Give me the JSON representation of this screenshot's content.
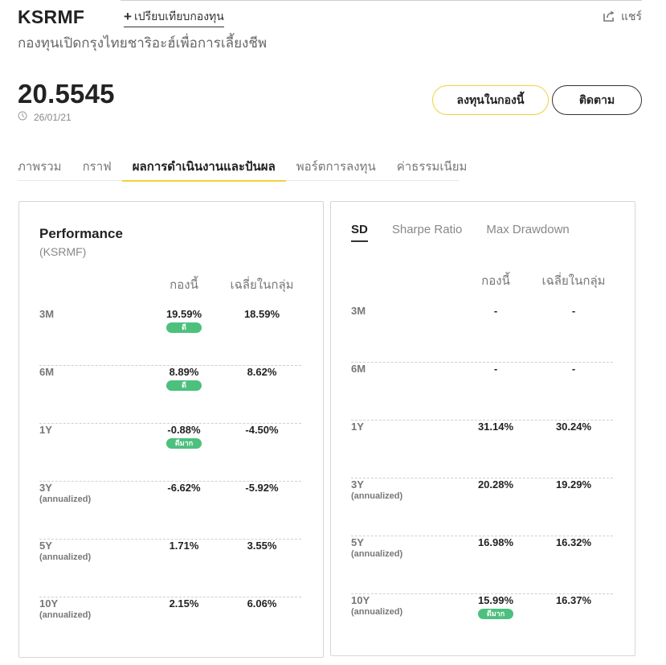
{
  "header": {
    "fund_code": "KSRMF",
    "compare_label": "เปรียบเทียบกองทุน",
    "share_label": "แชร์",
    "fund_name": "กองทุนเปิดกรุงไทยชาริอะฮ์เพื่อการเลี้ยงชีพ"
  },
  "nav": {
    "value": "20.5545",
    "date": "26/01/21"
  },
  "actions": {
    "invest_label": "ลงทุนในกองนี้",
    "follow_label": "ติดตาม"
  },
  "tabs": [
    {
      "label": "ภาพรวม"
    },
    {
      "label": "กราฟ"
    },
    {
      "label": "ผลการดำเนินงานและปันผล"
    },
    {
      "label": "พอร์ตการลงทุน"
    },
    {
      "label": "ค่าธรรมเนียม"
    }
  ],
  "performance": {
    "title": "Performance",
    "subtitle": "(KSRMF)",
    "col_fund": "กองนี้",
    "col_avg": "เฉลี่ยในกลุ่ม",
    "rows": [
      {
        "period": "3M",
        "sub": "",
        "fund": "19.59%",
        "avg": "18.59%",
        "badge": "ดี"
      },
      {
        "period": "6M",
        "sub": "",
        "fund": "8.89%",
        "avg": "8.62%",
        "badge": "ดี"
      },
      {
        "period": "1Y",
        "sub": "",
        "fund": "-0.88%",
        "avg": "-4.50%",
        "badge": "ดีมาก"
      },
      {
        "period": "3Y",
        "sub": "(annualized)",
        "fund": "-6.62%",
        "avg": "-5.92%",
        "badge": ""
      },
      {
        "period": "5Y",
        "sub": "(annualized)",
        "fund": "1.71%",
        "avg": "3.55%",
        "badge": ""
      },
      {
        "period": "10Y",
        "sub": "(annualized)",
        "fund": "2.15%",
        "avg": "6.06%",
        "badge": ""
      }
    ]
  },
  "risk": {
    "tabs": [
      {
        "label": "SD"
      },
      {
        "label": "Sharpe Ratio"
      },
      {
        "label": "Max Drawdown"
      }
    ],
    "col_fund": "กองนี้",
    "col_avg": "เฉลี่ยในกลุ่ม",
    "rows": [
      {
        "period": "3M",
        "sub": "",
        "fund": "-",
        "avg": "-",
        "badge": ""
      },
      {
        "period": "6M",
        "sub": "",
        "fund": "-",
        "avg": "-",
        "badge": ""
      },
      {
        "period": "1Y",
        "sub": "",
        "fund": "31.14%",
        "avg": "30.24%",
        "badge": ""
      },
      {
        "period": "3Y",
        "sub": "(annualized)",
        "fund": "20.28%",
        "avg": "19.29%",
        "badge": ""
      },
      {
        "period": "5Y",
        "sub": "(annualized)",
        "fund": "16.98%",
        "avg": "16.32%",
        "badge": ""
      },
      {
        "period": "10Y",
        "sub": "(annualized)",
        "fund": "15.99%",
        "avg": "16.37%",
        "badge": "ดีมาก"
      }
    ]
  },
  "icons": {
    "share": "share-icon",
    "clock": "clock-icon",
    "plus": "plus-icon"
  },
  "colors": {
    "accent": "#f0d23c",
    "badge": "#4dc07e"
  }
}
